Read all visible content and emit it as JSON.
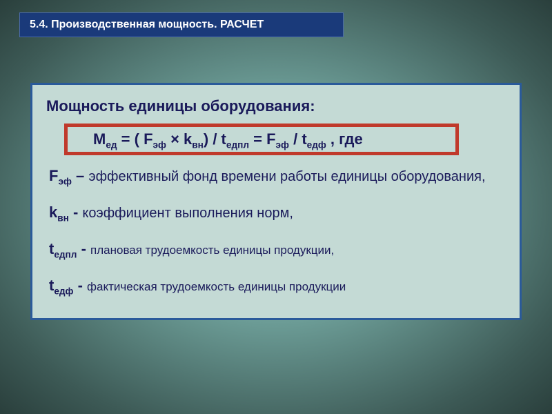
{
  "colors": {
    "header_bg": "#1a3a7a",
    "header_border": "#4a6aaa",
    "header_text": "#ffffff",
    "box_bg": "#c4dad5",
    "box_border": "#2a5a9a",
    "highlight_border": "#c0392b",
    "text": "#1a1a5a"
  },
  "header": "5.4. Производственная мощность. РАСЧЕТ",
  "content": {
    "title": "Мощность единицы оборудования:",
    "formula": {
      "pieces": {
        "m": "М",
        "m_sub": "ед",
        "eq1": " = ( F",
        "f_sub": "эф",
        "mult": "  ×  k",
        "k_sub": "вн",
        "div1": ") /  t",
        "t1_sub": "едпл",
        "eq2": "    =   F",
        "f2_sub": "эф",
        "div2": " / t",
        "t2_sub": "едф",
        "tail": " , где"
      }
    },
    "defs": [
      {
        "sym": "F",
        "sub": "эф",
        "dash": " – ",
        "text": "эффективный фонд времени работы единицы оборудования,",
        "small": false,
        "indent": 4
      },
      {
        "sym": "k",
        "sub": "вн",
        "dash": " -   ",
        "text": "коэффициент выполнения норм,",
        "small": false,
        "indent": 4
      },
      {
        "sym": "t",
        "sub": "едпл",
        "dash": "   -   ",
        "text": "плановая трудоемкость единицы продукции,",
        "small": true,
        "indent": 4
      },
      {
        "sym": "t",
        "sub": "едф",
        "dash": "    -   ",
        "text": "фактическая трудоемкость единицы продукции",
        "small": true,
        "indent": 4
      }
    ]
  }
}
